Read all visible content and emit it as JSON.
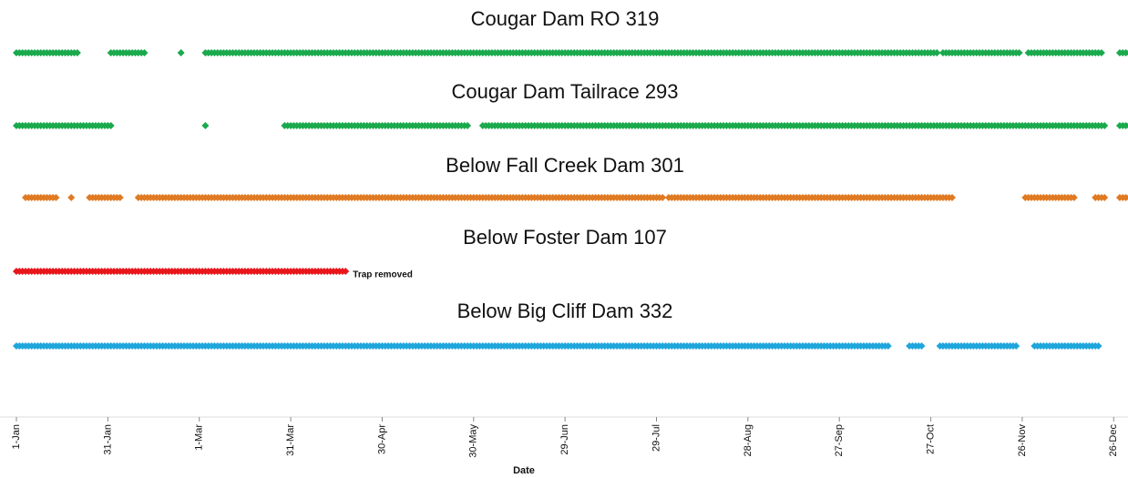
{
  "chart_data": {
    "type": "timeline",
    "xlabel": "Date",
    "xlim": [
      1,
      366
    ],
    "xticks": [
      {
        "value": 1,
        "label": "1-Jan"
      },
      {
        "value": 31,
        "label": "31-Jan"
      },
      {
        "value": 61,
        "label": "1-Mar"
      },
      {
        "value": 91,
        "label": "31-Mar"
      },
      {
        "value": 121,
        "label": "30-Apr"
      },
      {
        "value": 151,
        "label": "30-May"
      },
      {
        "value": 181,
        "label": "29-Jun"
      },
      {
        "value": 211,
        "label": "29-Jul"
      },
      {
        "value": 241,
        "label": "28-Aug"
      },
      {
        "value": 271,
        "label": "27-Sep"
      },
      {
        "value": 301,
        "label": "27-Oct"
      },
      {
        "value": 331,
        "label": "26-Nov"
      },
      {
        "value": 361,
        "label": "26-Dec"
      }
    ],
    "series": [
      {
        "name": "Cougar Dam RO 319",
        "color": "#1aa94c",
        "segments": [
          [
            1,
            21
          ],
          [
            32,
            43
          ],
          [
            55,
            55
          ],
          [
            63,
            303
          ],
          [
            305,
            330
          ],
          [
            333,
            357
          ],
          [
            363,
            366
          ]
        ]
      },
      {
        "name": "Cougar Dam Tailrace  293",
        "color": "#1aa94c",
        "segments": [
          [
            1,
            32
          ],
          [
            63,
            63
          ],
          [
            89,
            149
          ],
          [
            154,
            358
          ],
          [
            363,
            366
          ]
        ]
      },
      {
        "name": "Below Fall Creek Dam 301",
        "color": "#e07a22",
        "segments": [
          [
            4,
            14
          ],
          [
            19,
            19
          ],
          [
            25,
            35
          ],
          [
            41,
            213
          ],
          [
            215,
            308
          ],
          [
            332,
            348
          ],
          [
            355,
            358
          ],
          [
            363,
            366
          ]
        ]
      },
      {
        "name": "Below Foster Dam 107",
        "color": "#e8161b",
        "segments": [
          [
            1,
            109
          ]
        ],
        "annotation": "Trap removed"
      },
      {
        "name": "Below Big Cliff Dam 332",
        "color": "#1ea6dc",
        "segments": [
          [
            1,
            287
          ],
          [
            294,
            298
          ],
          [
            304,
            329
          ],
          [
            335,
            356
          ]
        ]
      }
    ]
  }
}
